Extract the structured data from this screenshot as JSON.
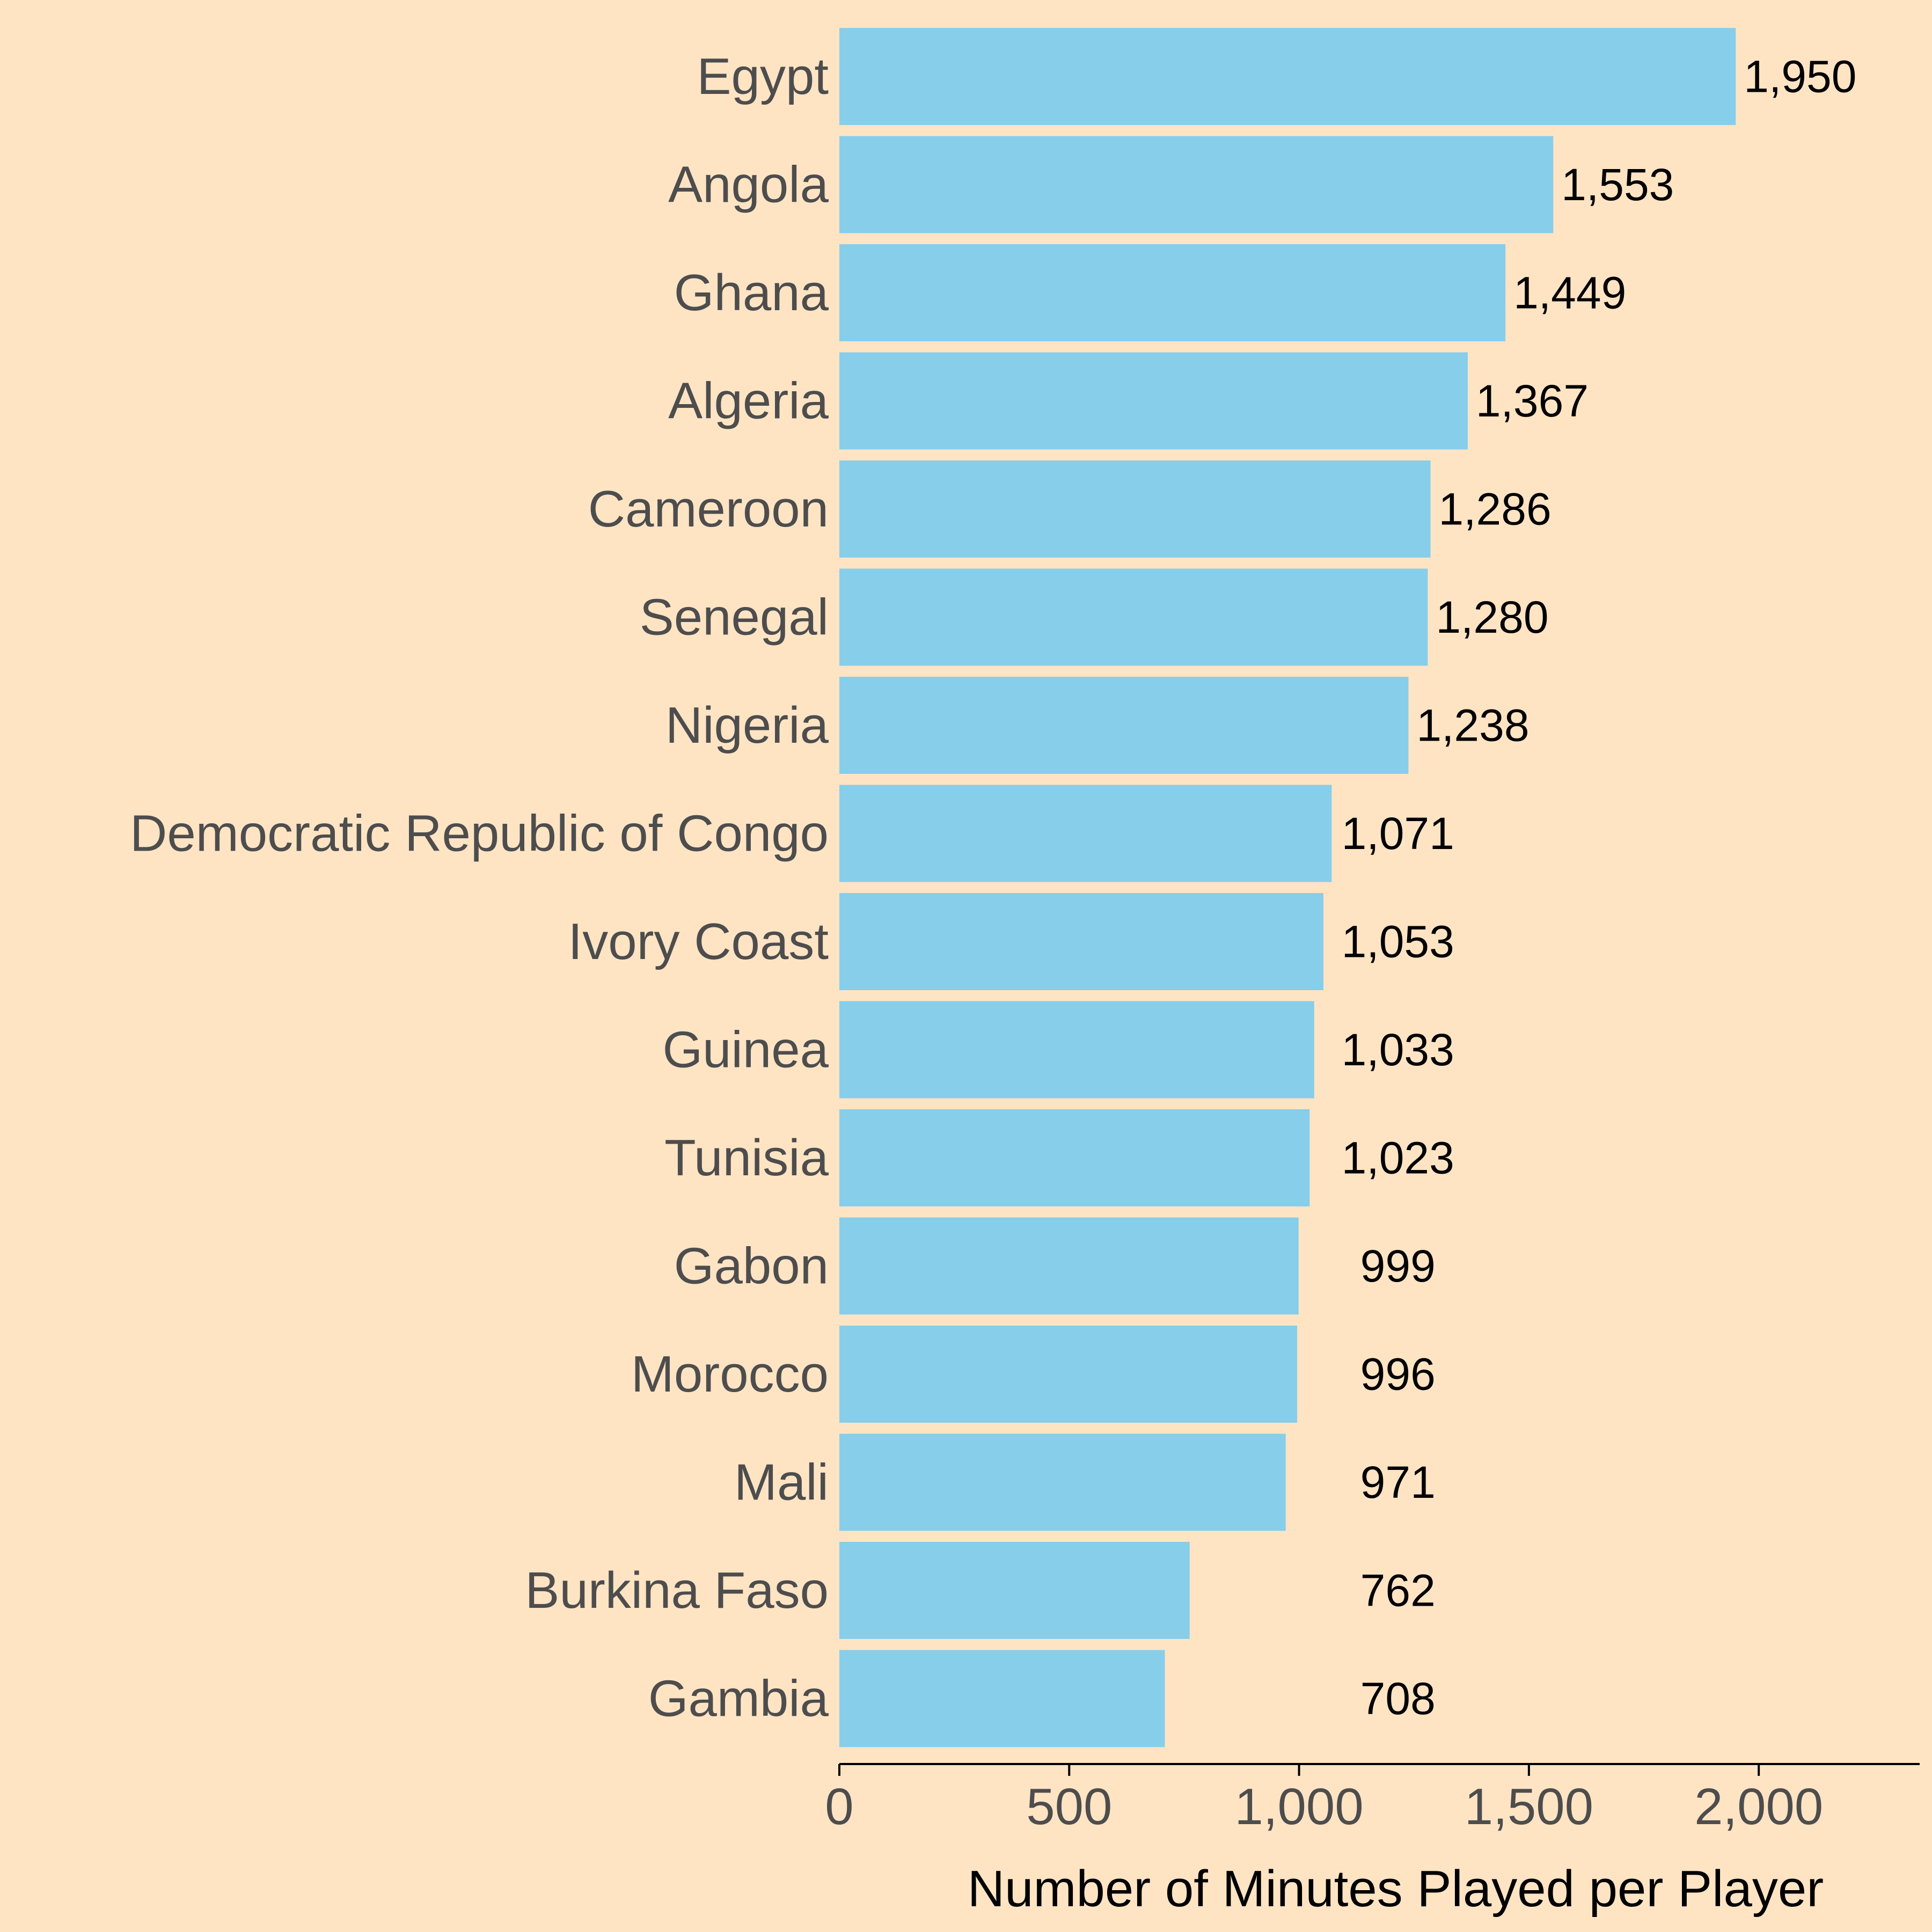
{
  "colors": {
    "background": "#FFE4C4",
    "bar": "#87CEEB",
    "category_text": "#4D4D4D",
    "value_text": "#000000",
    "axis": "#000000"
  },
  "chart_data": {
    "type": "bar",
    "orientation": "horizontal",
    "title": "",
    "xlabel": "Number of Minutes Played per Player",
    "ylabel": "",
    "xlim": [
      0,
      2350
    ],
    "x_ticks": [
      0,
      500,
      1000,
      1500,
      2000
    ],
    "x_tick_labels": [
      "0",
      "500",
      "1,000",
      "1,500",
      "2,000"
    ],
    "grid": false,
    "categories": [
      "Egypt",
      "Angola",
      "Ghana",
      "Algeria",
      "Cameroon",
      "Senegal",
      "Nigeria",
      "Democratic Republic of Congo",
      "Ivory Coast",
      "Guinea",
      "Tunisia",
      "Gabon",
      "Morocco",
      "Mali",
      "Burkina Faso",
      "Gambia"
    ],
    "values": [
      1950,
      1553,
      1449,
      1367,
      1286,
      1280,
      1238,
      1071,
      1053,
      1033,
      1023,
      999,
      996,
      971,
      762,
      708
    ],
    "value_labels": [
      "1,950",
      "1,553",
      "1,449",
      "1,367",
      "1,286",
      "1,280",
      "1,238",
      "1,071",
      "1,053",
      "1,033",
      "1,023",
      "999",
      "996",
      "971",
      "762",
      "708"
    ]
  }
}
